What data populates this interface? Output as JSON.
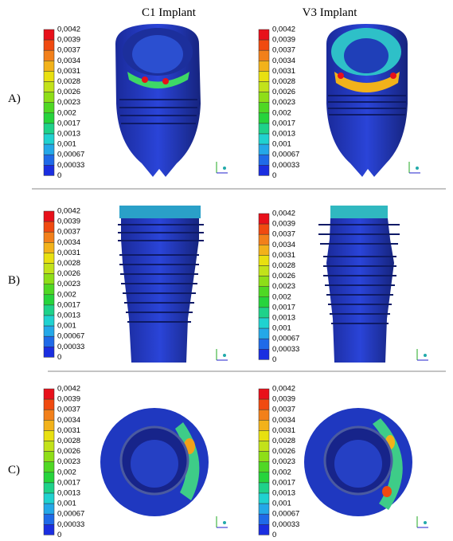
{
  "columns": [
    "C1 Implant",
    "V3 Implant"
  ],
  "rows": [
    "A)",
    "B)",
    "C)"
  ],
  "legend": {
    "labels": [
      "0,0042",
      "0,0039",
      "0,0037",
      "0,0034",
      "0,0031",
      "0,0028",
      "0,0026",
      "0,0023",
      "0,002",
      "0,0017",
      "0,0013",
      "0,001",
      "0,00067",
      "0,00033",
      "0"
    ],
    "colors": [
      "#e8101a",
      "#f04a10",
      "#f2801a",
      "#f2b21a",
      "#e8e010",
      "#c2e21a",
      "#8ede18",
      "#4fd824",
      "#26d43c",
      "#1ed28a",
      "#20d2d0",
      "#24a8e8",
      "#1f6ae8",
      "#1a2ee0"
    ]
  }
}
